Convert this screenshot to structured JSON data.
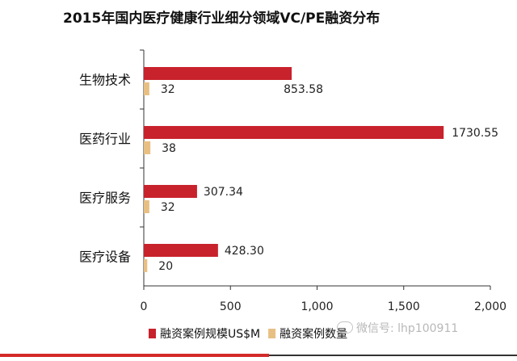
{
  "chart_data": {
    "type": "bar",
    "orientation": "horizontal",
    "title": "2015年国内医疗健康行业细分领域VC/PE融资分布",
    "categories": [
      "生物技术",
      "医药行业",
      "医疗服务",
      "医疗设备"
    ],
    "series": [
      {
        "name": "融资案例规模US$M",
        "color": "#c8222c",
        "values": [
          853.58,
          1730.55,
          307.34,
          428.3
        ],
        "value_labels": [
          "853.58",
          "1730.55",
          "307.34",
          "428.30"
        ]
      },
      {
        "name": "融资案例数量",
        "color": "#e8bf83",
        "values": [
          32,
          38,
          32,
          20
        ],
        "value_labels": [
          "32",
          "38",
          "32",
          "20"
        ]
      }
    ],
    "xlim": [
      0,
      2000
    ],
    "xticks": [
      0,
      500,
      1000,
      1500,
      2000
    ],
    "xtick_labels": [
      "0",
      "500",
      "1,000",
      "1,500",
      "2,000"
    ],
    "xlabel": "",
    "ylabel": "",
    "grid": false,
    "legend_position": "bottom"
  },
  "watermark": "微信号: lhp100911",
  "colors": {
    "accent": "#d32a2a"
  }
}
